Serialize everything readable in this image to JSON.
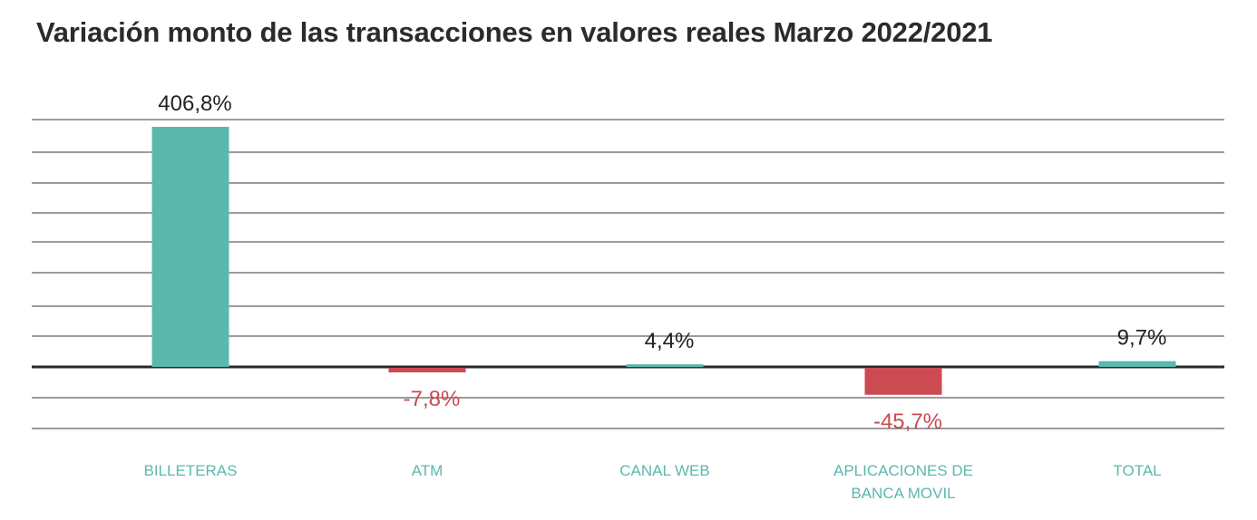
{
  "chart_data": {
    "type": "bar",
    "title": "Variación monto de las transacciones en valores reales Marzo 2022/2021",
    "categories": [
      "BILLETERAS",
      "ATM",
      "CANAL WEB",
      "APLICACIONES DE BANCA MOVIL",
      "TOTAL"
    ],
    "category_label_lines": [
      [
        "BILLETERAS"
      ],
      [
        "ATM"
      ],
      [
        "CANAL WEB"
      ],
      [
        "APLICACIONES DE",
        "BANCA MOVIL"
      ],
      [
        "TOTAL"
      ]
    ],
    "values": [
      406.8,
      -7.8,
      4.4,
      -45.7,
      9.7
    ],
    "value_labels": [
      "406,8%",
      "-7,8%",
      "4,4%",
      "-45,7%",
      "9,7%"
    ],
    "unit": "%",
    "ylim": [
      -100,
      400
    ],
    "grid": true,
    "legend": "none",
    "colors": {
      "positive": "#5bb8ad",
      "negative": "#cc4a52",
      "category_text": "#5bb8ad",
      "positive_label": "#222222",
      "negative_label": "#cc4a52",
      "grid": "#3a3a3a"
    }
  }
}
